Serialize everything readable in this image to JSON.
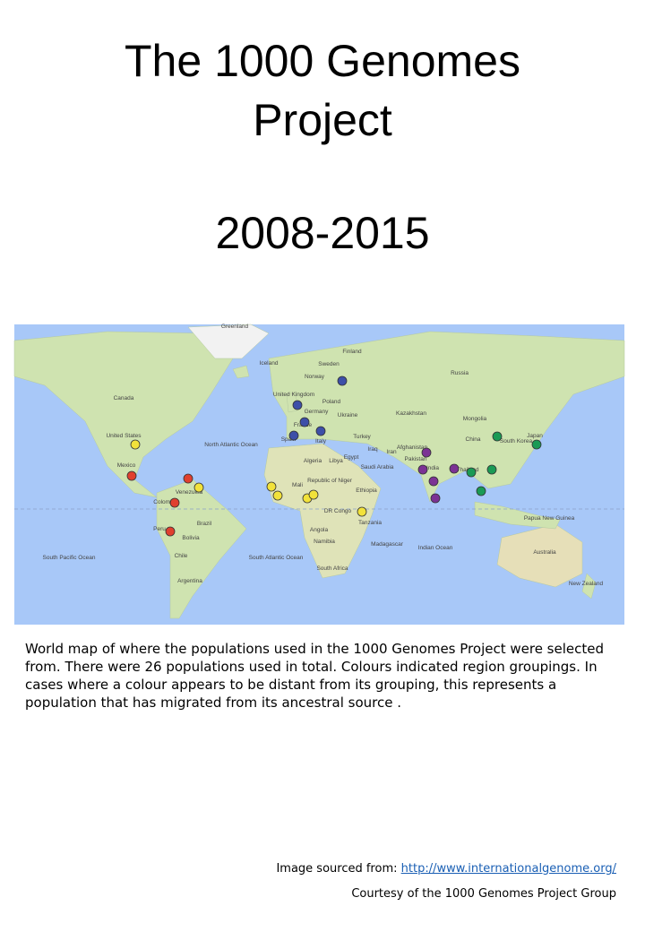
{
  "title": {
    "line1": "The 1000 Genomes",
    "line2": "Project",
    "years": "2008-2015"
  },
  "map": {
    "labels": [
      "Greenland",
      "Iceland",
      "Finland",
      "Sweden",
      "Norway",
      "Russia",
      "Canada",
      "United Kingdom",
      "Germany",
      "Poland",
      "Ukraine",
      "Kazakhstan",
      "Mongolia",
      "France",
      "Spain",
      "Italy",
      "Turkey",
      "United States",
      "North Atlantic Ocean",
      "Algeria",
      "Libya",
      "Egypt",
      "Iraq",
      "Iran",
      "Afghanistan",
      "Pakistan",
      "China",
      "South Korea",
      "Japan",
      "India",
      "Thailand",
      "Saudi Arabia",
      "Mexico",
      "Venezuela",
      "Colombia",
      "Mali",
      "Republic of Niger",
      "Ethiopia",
      "DR Congo",
      "Tanzania",
      "Angola",
      "Namibia",
      "Madagascar",
      "South Africa",
      "Brazil",
      "Peru",
      "Bolivia",
      "Chile",
      "Argentina",
      "South Pacific Ocean",
      "South Atlantic Ocean",
      "Indian Ocean",
      "Papua New Guinea",
      "Australia",
      "New Zealand"
    ]
  },
  "caption": "World map of where the populations used in the 1000 Genomes Project were selected from. There were 26 populations used in total. Colours indicated region groupings. In cases where a colour appears to be distant from its grouping, this represents a population that has migrated from its ancestral source .",
  "source": {
    "prefix": "Image sourced from:",
    "link": "http://www.internationalgenome.org/"
  },
  "courtesy": "Courtesy of the 1000 Genomes Project Group"
}
